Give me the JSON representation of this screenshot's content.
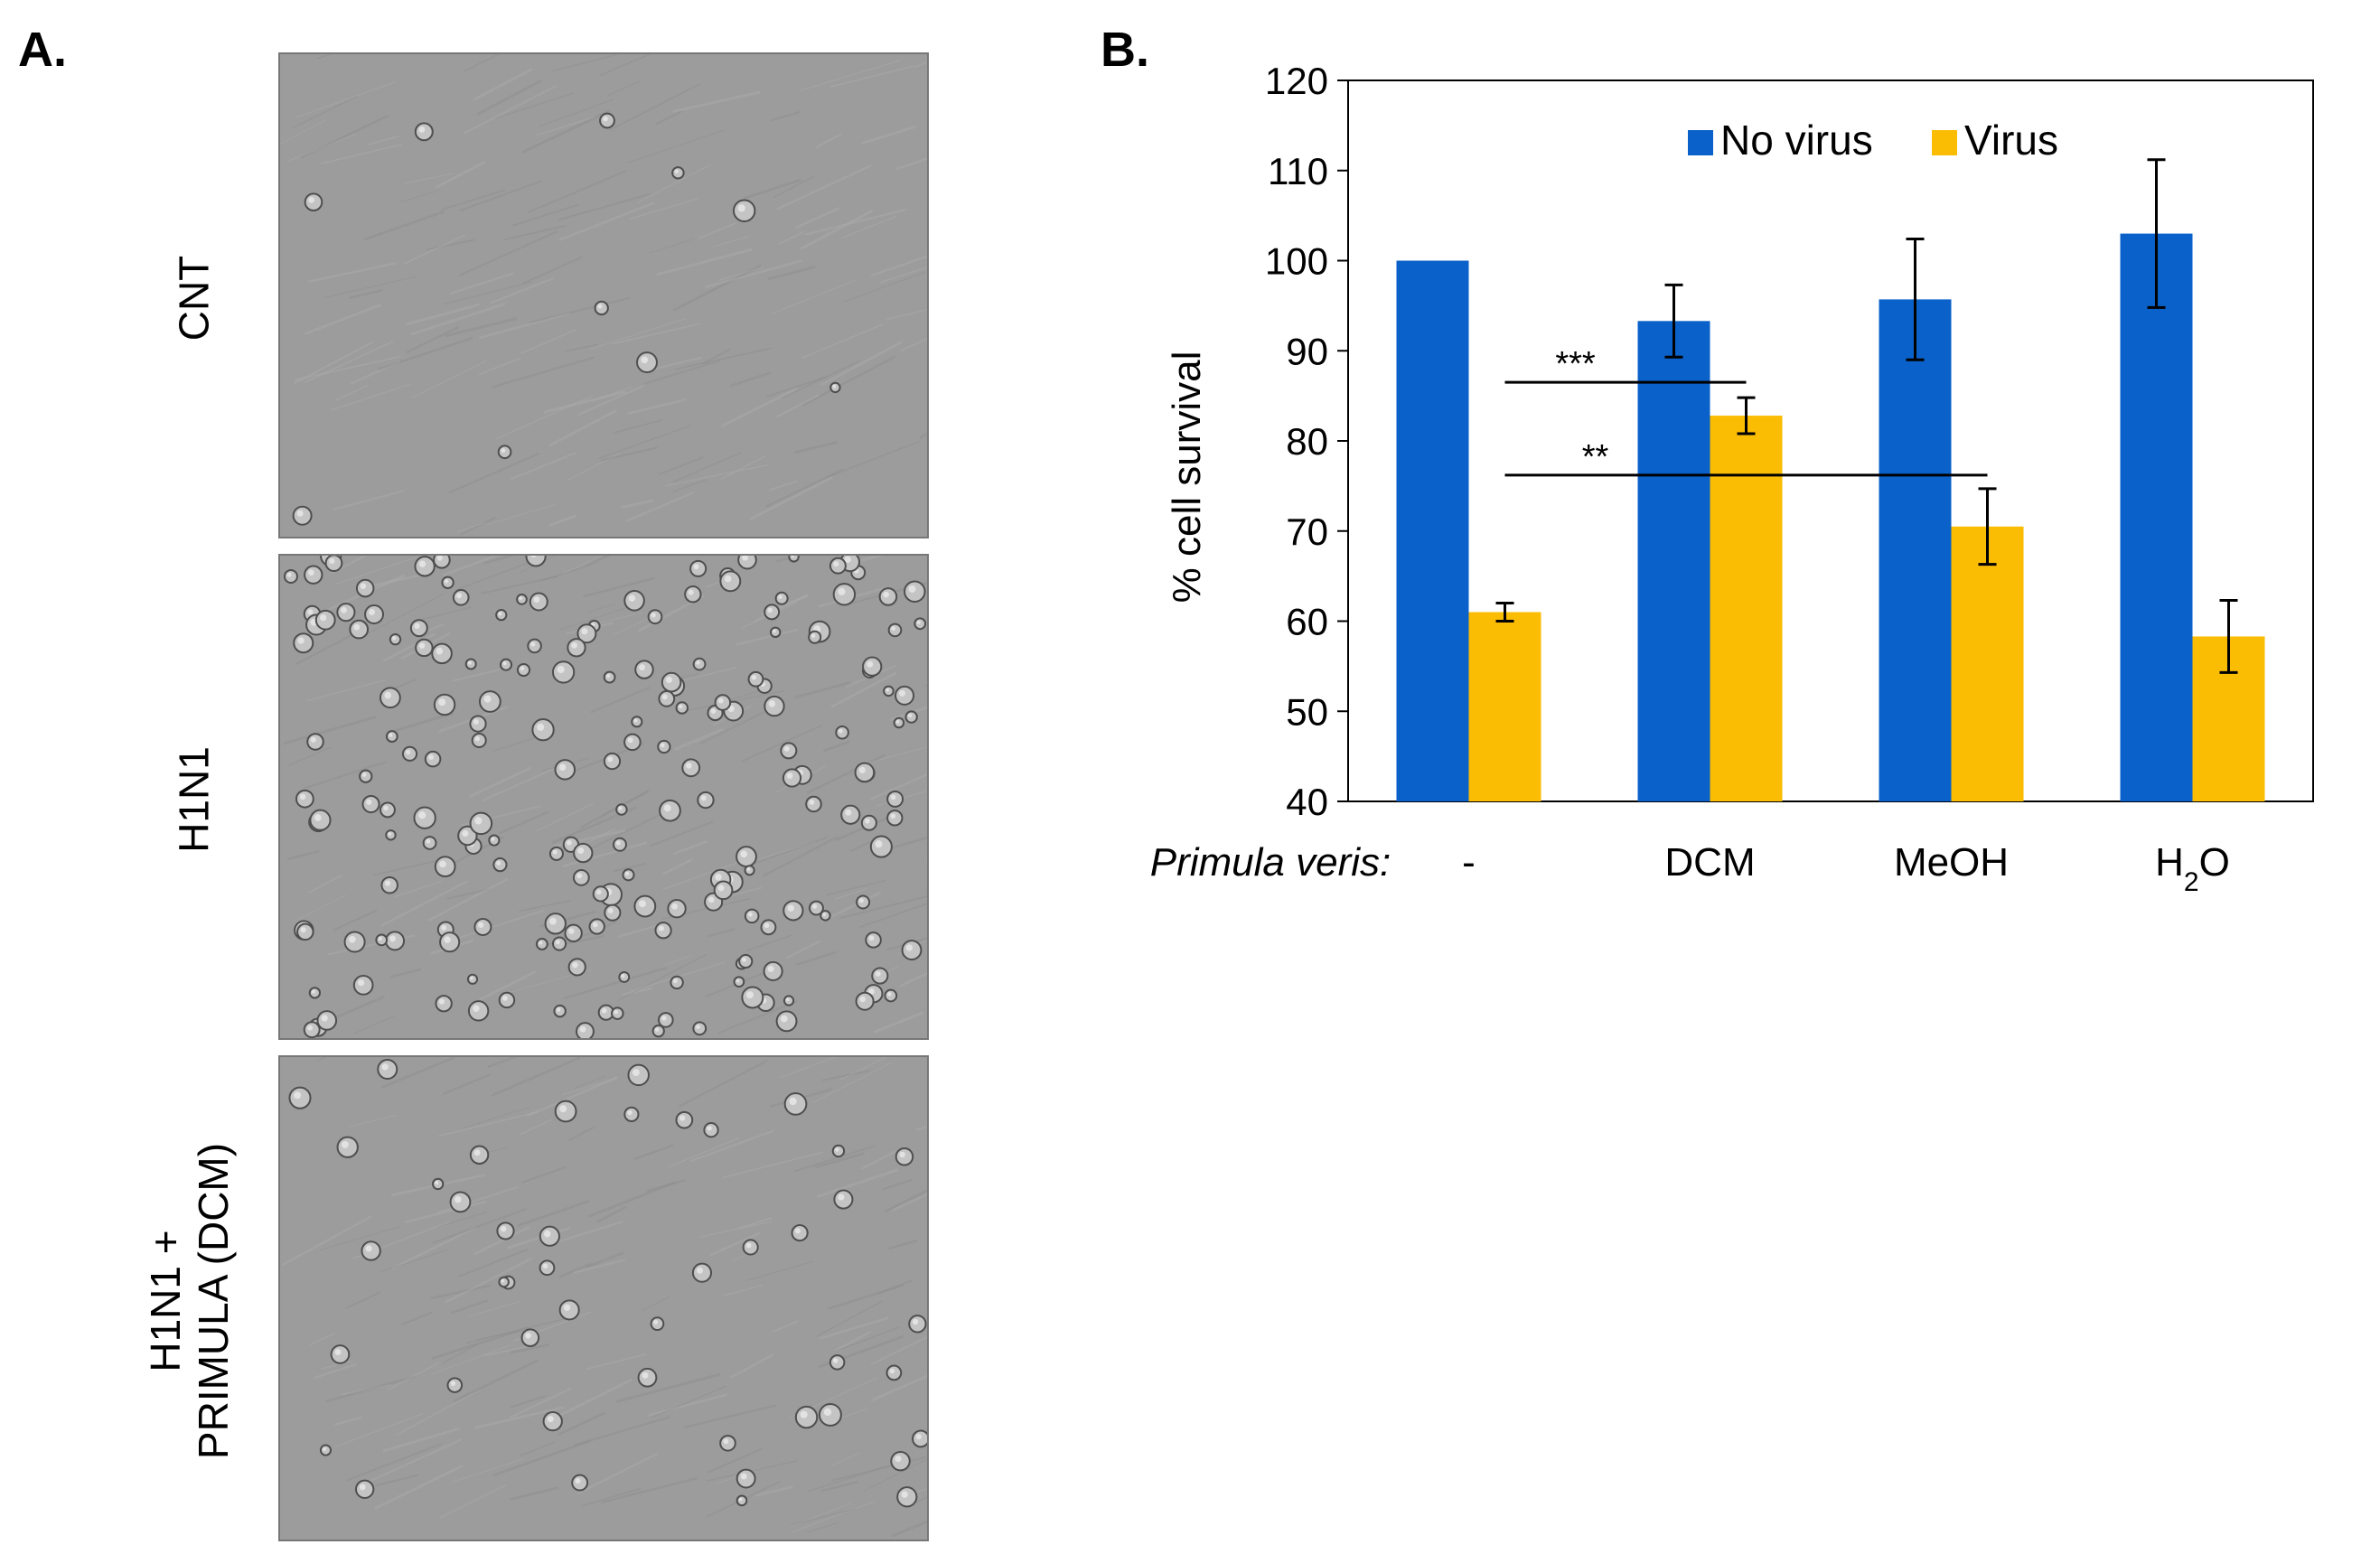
{
  "panel_a": {
    "letter": "A.",
    "images": [
      {
        "label_lines": [
          "CNT"
        ],
        "density": 10,
        "seed": 11
      },
      {
        "label_lines": [
          "H1N1"
        ],
        "density": 190,
        "seed": 23
      },
      {
        "label_lines": [
          "H1N1 +",
          "PRIMULA (DCM)"
        ],
        "density": 45,
        "seed": 37
      }
    ]
  },
  "panel_b": {
    "letter": "B."
  },
  "chart_data": {
    "type": "bar",
    "categories": [
      "-",
      "DCM",
      "MeOH",
      "H2O"
    ],
    "category_prefix_label": "Primula veris:",
    "series": [
      {
        "name": "No virus",
        "color": "#0a61c9",
        "values": [
          100,
          93.3,
          95.7,
          103
        ],
        "errors": [
          0,
          4,
          6.7,
          8.2
        ]
      },
      {
        "name": "Virus",
        "color": "#fbbc04",
        "values": [
          61,
          82.8,
          70.5,
          58.3
        ],
        "errors": [
          1,
          2,
          4.2,
          4
        ]
      }
    ],
    "ylabel": "% cell survival",
    "ylim": [
      40,
      120
    ],
    "yticks": [
      40,
      50,
      60,
      70,
      80,
      90,
      100,
      110,
      120
    ],
    "legend_position": "top-center",
    "significance": [
      {
        "label": "***",
        "from_category": 0,
        "to_category": 1,
        "y": 86.5
      },
      {
        "label": "**",
        "from_category": 0,
        "to_category": 2,
        "y": 76.2
      }
    ]
  }
}
